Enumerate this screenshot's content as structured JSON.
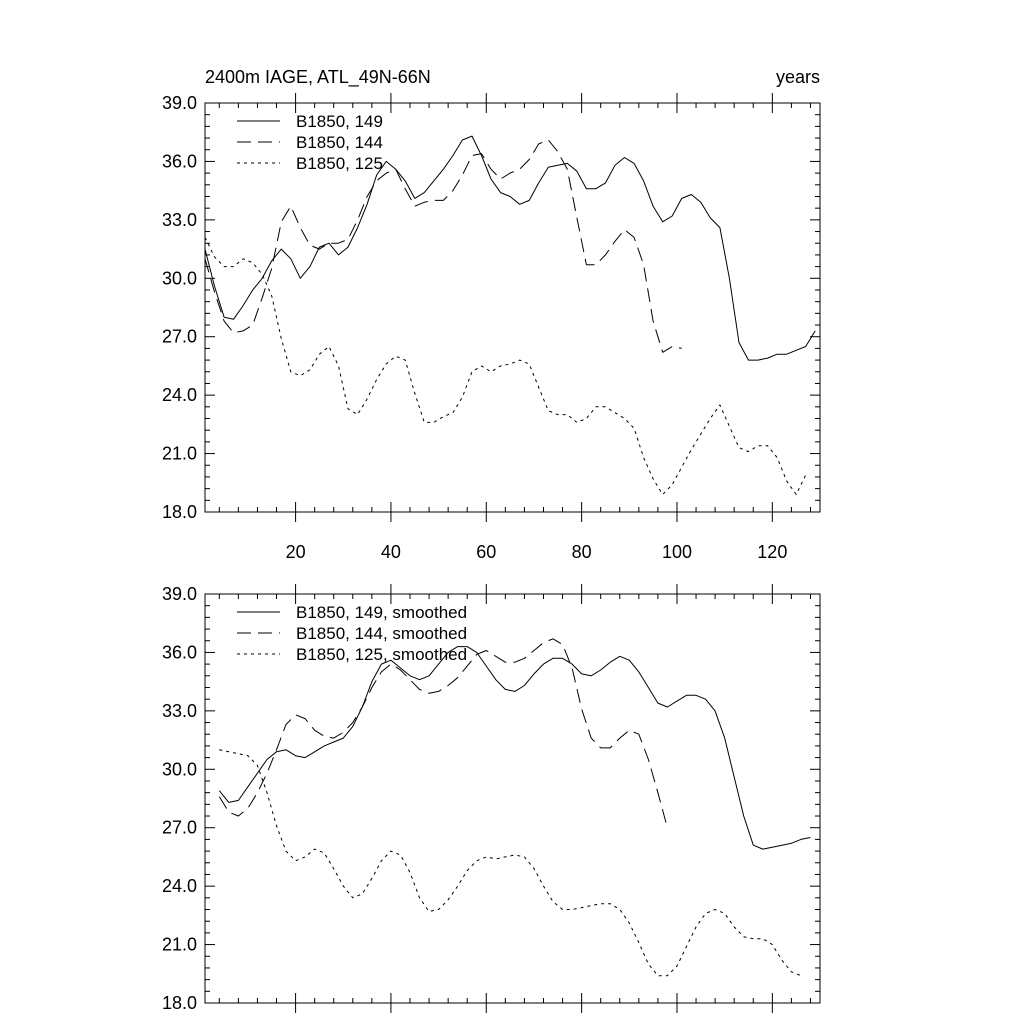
{
  "chart_data": [
    {
      "type": "line",
      "title_left": "2400m IAGE, ATL_49N-66N",
      "title_right": "years",
      "xlim": [
        1,
        130
      ],
      "ylim": [
        18,
        39
      ],
      "yticks": [
        "18.0",
        "21.0",
        "24.0",
        "27.0",
        "30.0",
        "33.0",
        "36.0",
        "39.0"
      ],
      "xticks": [
        "20",
        "40",
        "60",
        "80",
        "100",
        "120"
      ],
      "show_x_tick_labels": true,
      "legend_position": "top-left",
      "series": [
        {
          "name": "B1850, 149",
          "style": "solid",
          "x": [
            1,
            3,
            5,
            7,
            9,
            11,
            13,
            15,
            17,
            19,
            21,
            23,
            25,
            27,
            29,
            31,
            33,
            35,
            37,
            39,
            41,
            43,
            45,
            47,
            49,
            51,
            53,
            55,
            57,
            59,
            61,
            63,
            65,
            67,
            69,
            71,
            73,
            75,
            77,
            79,
            81,
            83,
            85,
            87,
            89,
            91,
            93,
            95,
            97,
            99,
            101,
            103,
            105,
            107,
            109,
            111,
            113,
            115,
            117,
            119,
            121,
            123,
            125,
            127,
            129
          ],
          "y": [
            31.5,
            29.6,
            28.0,
            27.9,
            28.6,
            29.4,
            30.0,
            30.9,
            31.5,
            31.0,
            30.0,
            30.6,
            31.6,
            31.8,
            31.2,
            31.6,
            32.6,
            33.8,
            35.3,
            36.0,
            35.6,
            35.0,
            34.1,
            34.4,
            35.0,
            35.6,
            36.3,
            37.1,
            37.3,
            36.3,
            35.1,
            34.4,
            34.2,
            33.8,
            34.0,
            34.9,
            35.7,
            35.8,
            35.9,
            35.5,
            34.6,
            34.6,
            34.9,
            35.8,
            36.2,
            35.9,
            35.0,
            33.7,
            32.9,
            33.2,
            34.1,
            34.3,
            33.9,
            33.1,
            32.6,
            30.0,
            26.7,
            25.8,
            25.8,
            25.9,
            26.1,
            26.1,
            26.3,
            26.5,
            27.3
          ]
        },
        {
          "name": "B1850, 144",
          "style": "dashed",
          "x": [
            1,
            3,
            5,
            7,
            9,
            11,
            13,
            15,
            17,
            19,
            21,
            23,
            25,
            27,
            29,
            31,
            33,
            35,
            37,
            39,
            41,
            43,
            45,
            47,
            49,
            51,
            53,
            55,
            57,
            59,
            61,
            63,
            65,
            67,
            69,
            71,
            73,
            75,
            77,
            79,
            81,
            83,
            85,
            87,
            89,
            91,
            93,
            95,
            97,
            99,
            101
          ],
          "y": [
            31.0,
            29.3,
            27.8,
            27.2,
            27.3,
            27.6,
            29.0,
            30.5,
            32.9,
            33.7,
            32.6,
            31.7,
            31.5,
            31.8,
            31.8,
            32.0,
            33.0,
            34.2,
            35.0,
            35.4,
            35.6,
            34.6,
            33.7,
            33.9,
            34.0,
            34.0,
            34.5,
            35.3,
            36.3,
            36.4,
            35.6,
            35.1,
            35.4,
            35.6,
            36.1,
            36.9,
            37.1,
            36.5,
            35.6,
            33.1,
            30.7,
            30.7,
            31.2,
            31.9,
            32.5,
            32.1,
            30.7,
            27.8,
            26.2,
            26.5,
            26.4
          ]
        },
        {
          "name": "B1850, 125",
          "style": "dotted",
          "x": [
            1,
            3,
            5,
            7,
            9,
            11,
            13,
            15,
            17,
            19,
            21,
            23,
            25,
            27,
            29,
            31,
            33,
            35,
            37,
            39,
            41,
            43,
            45,
            47,
            49,
            51,
            53,
            55,
            57,
            59,
            61,
            63,
            65,
            67,
            69,
            71,
            73,
            75,
            77,
            79,
            81,
            83,
            85,
            87,
            89,
            91,
            93,
            95,
            97,
            99,
            101,
            103,
            105,
            107,
            109,
            111,
            113,
            115,
            117,
            119,
            121,
            123,
            125,
            127
          ],
          "y": [
            32.1,
            31.1,
            30.6,
            30.6,
            31.0,
            30.8,
            30.2,
            29.1,
            26.9,
            25.2,
            25.0,
            25.3,
            26.1,
            26.5,
            25.5,
            23.3,
            23.0,
            23.8,
            24.8,
            25.6,
            26.0,
            25.8,
            24.1,
            22.6,
            22.6,
            22.9,
            23.1,
            23.9,
            25.2,
            25.5,
            25.2,
            25.5,
            25.6,
            25.8,
            25.6,
            24.4,
            23.2,
            23.0,
            23.0,
            22.6,
            22.8,
            23.4,
            23.4,
            23.1,
            22.8,
            22.3,
            20.8,
            19.7,
            18.9,
            19.4,
            20.3,
            21.2,
            22.0,
            22.8,
            23.5,
            22.4,
            21.3,
            21.1,
            21.4,
            21.4,
            20.8,
            19.6,
            18.9,
            19.9
          ]
        }
      ]
    },
    {
      "type": "line",
      "title_left": "",
      "title_right": "",
      "xlim": [
        1,
        130
      ],
      "ylim": [
        18,
        39
      ],
      "yticks": [
        "18.0",
        "21.0",
        "24.0",
        "27.0",
        "30.0",
        "33.0",
        "36.0",
        "39.0"
      ],
      "xticks": [
        "",
        "",
        "",
        "",
        "",
        ""
      ],
      "show_x_tick_labels": false,
      "legend_position": "top-left",
      "series": [
        {
          "name": "B1850, 149, smoothed",
          "style": "solid",
          "x": [
            4,
            6,
            8,
            10,
            12,
            14,
            16,
            18,
            20,
            22,
            24,
            26,
            28,
            30,
            32,
            34,
            36,
            38,
            40,
            42,
            44,
            46,
            48,
            50,
            52,
            54,
            56,
            58,
            60,
            62,
            64,
            66,
            68,
            70,
            72,
            74,
            76,
            78,
            80,
            82,
            84,
            86,
            88,
            90,
            92,
            94,
            96,
            98,
            100,
            102,
            104,
            106,
            108,
            110,
            112,
            114,
            116,
            118,
            120,
            122,
            124,
            126,
            128
          ],
          "y": [
            28.9,
            28.3,
            28.4,
            29.1,
            29.8,
            30.5,
            30.9,
            31.0,
            30.7,
            30.6,
            30.9,
            31.2,
            31.4,
            31.6,
            32.2,
            33.2,
            34.5,
            35.4,
            35.6,
            35.2,
            34.8,
            34.6,
            34.8,
            35.4,
            36.0,
            36.3,
            36.3,
            36.0,
            35.3,
            34.6,
            34.1,
            34.0,
            34.3,
            34.9,
            35.4,
            35.7,
            35.7,
            35.4,
            34.9,
            34.8,
            35.1,
            35.5,
            35.8,
            35.6,
            35.0,
            34.2,
            33.4,
            33.2,
            33.5,
            33.8,
            33.8,
            33.6,
            33.0,
            31.6,
            29.6,
            27.6,
            26.1,
            25.9,
            26.0,
            26.1,
            26.2,
            26.4,
            26.5
          ]
        },
        {
          "name": "B1850, 144, smoothed",
          "style": "dashed",
          "x": [
            4,
            6,
            8,
            10,
            12,
            14,
            16,
            18,
            20,
            22,
            24,
            26,
            28,
            30,
            32,
            34,
            36,
            38,
            40,
            42,
            44,
            46,
            48,
            50,
            52,
            54,
            56,
            58,
            60,
            62,
            64,
            66,
            68,
            70,
            72,
            74,
            76,
            78,
            80,
            82,
            84,
            86,
            88,
            90,
            92,
            94,
            96,
            98
          ],
          "y": [
            28.6,
            27.8,
            27.6,
            28.0,
            28.8,
            29.8,
            31.0,
            32.3,
            32.8,
            32.6,
            32.0,
            31.7,
            31.6,
            31.9,
            32.4,
            33.2,
            34.2,
            35.0,
            35.4,
            35.1,
            34.6,
            34.1,
            33.9,
            34.0,
            34.3,
            34.7,
            35.3,
            35.9,
            36.1,
            35.8,
            35.5,
            35.5,
            35.7,
            36.1,
            36.5,
            36.7,
            36.4,
            35.2,
            33.1,
            31.6,
            31.1,
            31.1,
            31.6,
            32.0,
            31.8,
            30.5,
            28.8,
            27.0
          ]
        },
        {
          "name": "B1850, 125, smoothed",
          "style": "dotted",
          "x": [
            4,
            6,
            8,
            10,
            12,
            14,
            16,
            18,
            20,
            22,
            24,
            26,
            28,
            30,
            32,
            34,
            36,
            38,
            40,
            42,
            44,
            46,
            48,
            50,
            52,
            54,
            56,
            58,
            60,
            62,
            64,
            66,
            68,
            70,
            72,
            74,
            76,
            78,
            80,
            82,
            84,
            86,
            88,
            90,
            92,
            94,
            96,
            98,
            100,
            102,
            104,
            106,
            108,
            110,
            112,
            114,
            116,
            118,
            120,
            122,
            124,
            126
          ],
          "y": [
            31.0,
            30.9,
            30.8,
            30.7,
            30.2,
            28.8,
            27.1,
            25.8,
            25.3,
            25.5,
            25.9,
            25.7,
            24.9,
            24.0,
            23.4,
            23.6,
            24.4,
            25.3,
            25.8,
            25.6,
            24.7,
            23.4,
            22.7,
            22.8,
            23.3,
            24.0,
            24.8,
            25.3,
            25.5,
            25.4,
            25.5,
            25.6,
            25.5,
            24.9,
            24.0,
            23.2,
            22.8,
            22.8,
            22.9,
            23.0,
            23.1,
            23.1,
            22.8,
            22.1,
            21.1,
            20.0,
            19.4,
            19.4,
            19.9,
            20.9,
            21.9,
            22.6,
            22.8,
            22.6,
            21.9,
            21.4,
            21.3,
            21.3,
            21.0,
            20.2,
            19.6,
            19.4
          ]
        }
      ]
    }
  ]
}
